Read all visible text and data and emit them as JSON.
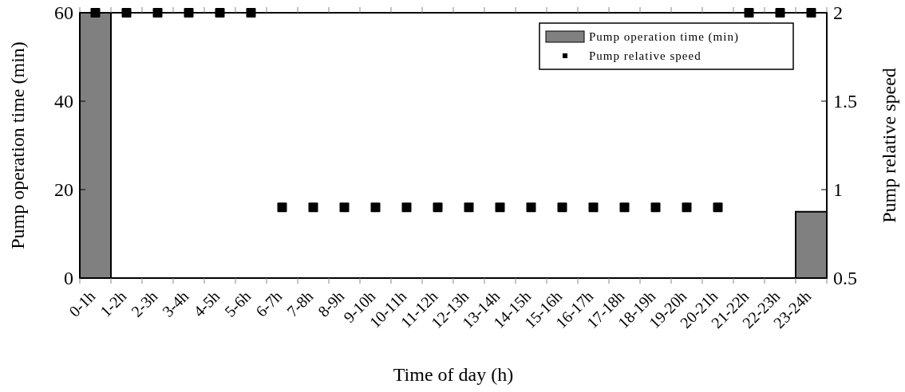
{
  "chart_data": {
    "type": "bar",
    "xlabel": "Time of day (h)",
    "ylabel": "Pump operation time (min)",
    "y2label": "Pump relative speed",
    "categories": [
      "0-1h",
      "1-2h",
      "2-3h",
      "3-4h",
      "4-5h",
      "5-6h",
      "6-7h",
      "7-8h",
      "8-9h",
      "9-10h",
      "10-11h",
      "11-12h",
      "12-13h",
      "13-14h",
      "14-15h",
      "15-16h",
      "16-17h",
      "17-18h",
      "18-19h",
      "19-20h",
      "20-21h",
      "21-22h",
      "22-23h",
      "23-24h"
    ],
    "series": [
      {
        "name": "Pump operation time (min)",
        "type": "bar",
        "color": "#808080",
        "values": [
          60,
          0,
          0,
          0,
          0,
          0,
          0,
          0,
          0,
          0,
          0,
          0,
          0,
          0,
          0,
          0,
          0,
          0,
          0,
          0,
          0,
          0,
          0,
          15
        ]
      },
      {
        "name": "Pump relative speed",
        "type": "scatter",
        "axis": "y2",
        "color": "#000000",
        "marker": "square",
        "values": [
          2,
          2,
          2,
          2,
          2,
          2,
          0.9,
          0.9,
          0.9,
          0.9,
          0.9,
          0.9,
          0.9,
          0.9,
          0.9,
          0.9,
          0.9,
          0.9,
          0.9,
          0.9,
          0.9,
          2,
          2,
          2
        ]
      }
    ],
    "ylim": [
      0,
      60
    ],
    "yticks": [
      0,
      20,
      40,
      60
    ],
    "y2lim": [
      0.5,
      2
    ],
    "y2ticks": [
      0.5,
      1,
      1.5,
      2
    ],
    "legend": "top right",
    "grid": false
  }
}
